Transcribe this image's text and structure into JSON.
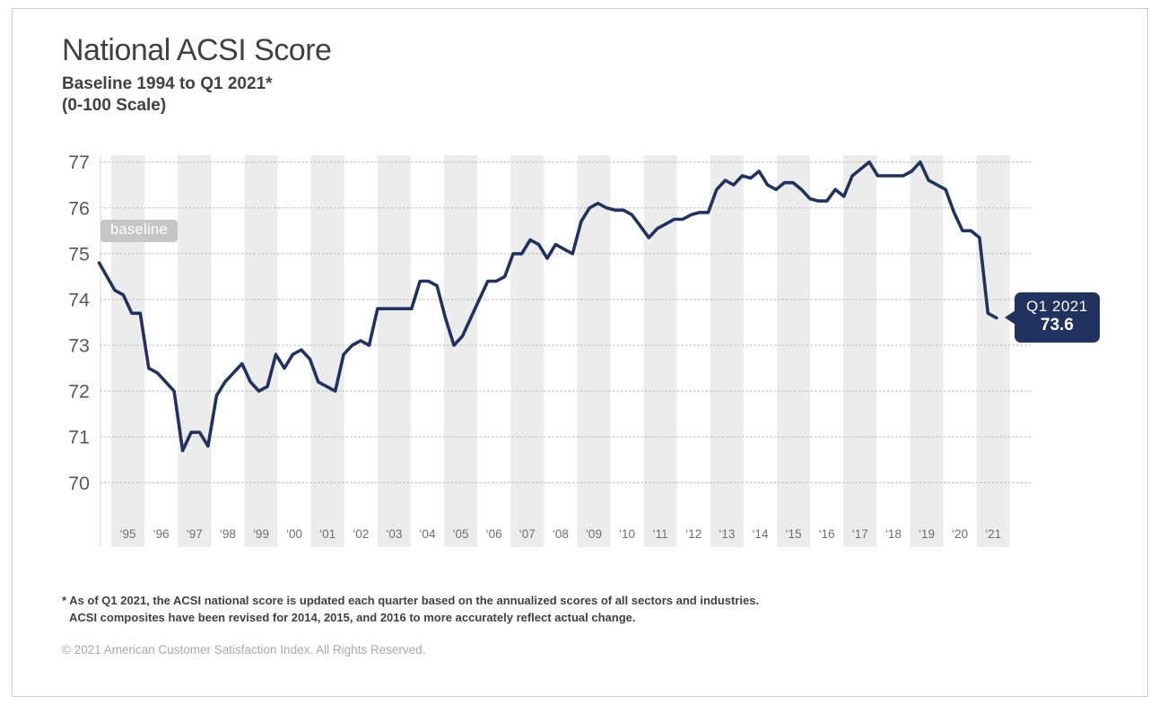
{
  "header": {
    "title": "National ACSI Score",
    "subtitle_line1": "Baseline 1994 to Q1 2021*",
    "subtitle_line2": "(0-100 Scale)"
  },
  "annotations": {
    "baseline_label": "baseline",
    "callout_line1": "Q1 2021",
    "callout_value": "73.6"
  },
  "footer": {
    "footnote_line1": "* As of Q1 2021, the ACSI national score is updated each quarter based on the annualized scores of all sectors and industries.",
    "footnote_line2": "ACSI composites have been revised for 2014, 2015, and 2016 to more accurately reflect actual change.",
    "copyright": "© 2021 American Customer Satisfaction Index. All Rights Reserved."
  },
  "colors": {
    "line": "#22325f",
    "callout_bg": "#22325f",
    "baseline_badge_bg": "#c6c6c6",
    "year_band": "#ececec",
    "gridline": "#c8c8c8",
    "y_tick_text": "#58595b",
    "x_tick_text": "#6d6e71",
    "axis_line": "#d9d9d9",
    "card_border": "#ccccc6"
  },
  "chart_data": {
    "type": "line",
    "title": "National ACSI Score",
    "subtitle": "Baseline 1994 to Q1 2021* (0-100 Scale)",
    "xlabel": "",
    "ylabel": "",
    "ylim": [
      70,
      77
    ],
    "grid": "horizontal-dotted",
    "y_tick_labels": [
      "77",
      "76",
      "75",
      "74",
      "73",
      "72",
      "71",
      "70"
    ],
    "y_ticks": [
      77,
      76,
      75,
      74,
      73,
      72,
      71,
      70
    ],
    "x_tick_labels": [
      "‘95",
      "‘96",
      "‘97",
      "‘98",
      "‘99",
      "‘00",
      "‘01",
      "‘02",
      "‘03",
      "‘04",
      "‘05",
      "‘06",
      "‘07",
      "‘08",
      "‘09",
      "‘10",
      "‘11",
      "‘12",
      "‘13",
      "‘14",
      "‘15",
      "‘16",
      "‘17",
      "‘18",
      "‘19",
      "‘20",
      "‘21"
    ],
    "x_tick_years": [
      1995,
      1996,
      1997,
      1998,
      1999,
      2000,
      2001,
      2002,
      2003,
      2004,
      2005,
      2006,
      2007,
      2008,
      2009,
      2010,
      2011,
      2012,
      2013,
      2014,
      2015,
      2016,
      2017,
      2018,
      2019,
      2020,
      2021
    ],
    "shaded_year_bands": [
      1995,
      1997,
      1999,
      2001,
      2003,
      2005,
      2007,
      2009,
      2011,
      2013,
      2015,
      2017,
      2019,
      2021
    ],
    "series": [
      {
        "name": "National ACSI Score",
        "first_point_label": "1994 baseline",
        "frequency": "quarterly from Q1 1995 to Q1 2021",
        "values": [
          74.8,
          74.2,
          74.1,
          73.7,
          73.7,
          72.5,
          72.4,
          72.2,
          72.0,
          70.7,
          71.1,
          71.1,
          70.8,
          71.9,
          72.2,
          72.4,
          72.6,
          72.2,
          72.0,
          72.1,
          72.8,
          72.5,
          72.8,
          72.9,
          72.7,
          72.2,
          72.1,
          72.0,
          72.8,
          73.0,
          73.1,
          73.0,
          73.8,
          73.8,
          73.8,
          73.8,
          73.8,
          74.4,
          74.4,
          74.3,
          73.6,
          73.0,
          73.2,
          73.6,
          74.0,
          74.4,
          74.4,
          74.5,
          75.0,
          75.0,
          75.3,
          75.2,
          74.9,
          75.2,
          75.1,
          75.0,
          75.7,
          76.0,
          76.1,
          76.0,
          75.95,
          75.95,
          75.85,
          75.6,
          75.35,
          75.55,
          75.65,
          75.75,
          75.75,
          75.85,
          75.9,
          75.9,
          76.4,
          76.6,
          76.5,
          76.7,
          76.65,
          76.8,
          76.5,
          76.4,
          76.55,
          76.55,
          76.4,
          76.2,
          76.15,
          76.15,
          76.4,
          76.25,
          76.7,
          76.85,
          77.0,
          76.7,
          76.7,
          76.7,
          76.7,
          76.8,
          77.0,
          76.6,
          76.5,
          76.4,
          75.9,
          75.5,
          75.5,
          75.35,
          73.7,
          73.6
        ]
      }
    ],
    "annotations": [
      {
        "type": "label-badge",
        "text": "baseline",
        "attached_to": "1994 start of line"
      },
      {
        "type": "callout",
        "text_line1": "Q1 2021",
        "text_line2": "73.6",
        "attached_to": "last point"
      }
    ],
    "legend": "none"
  }
}
